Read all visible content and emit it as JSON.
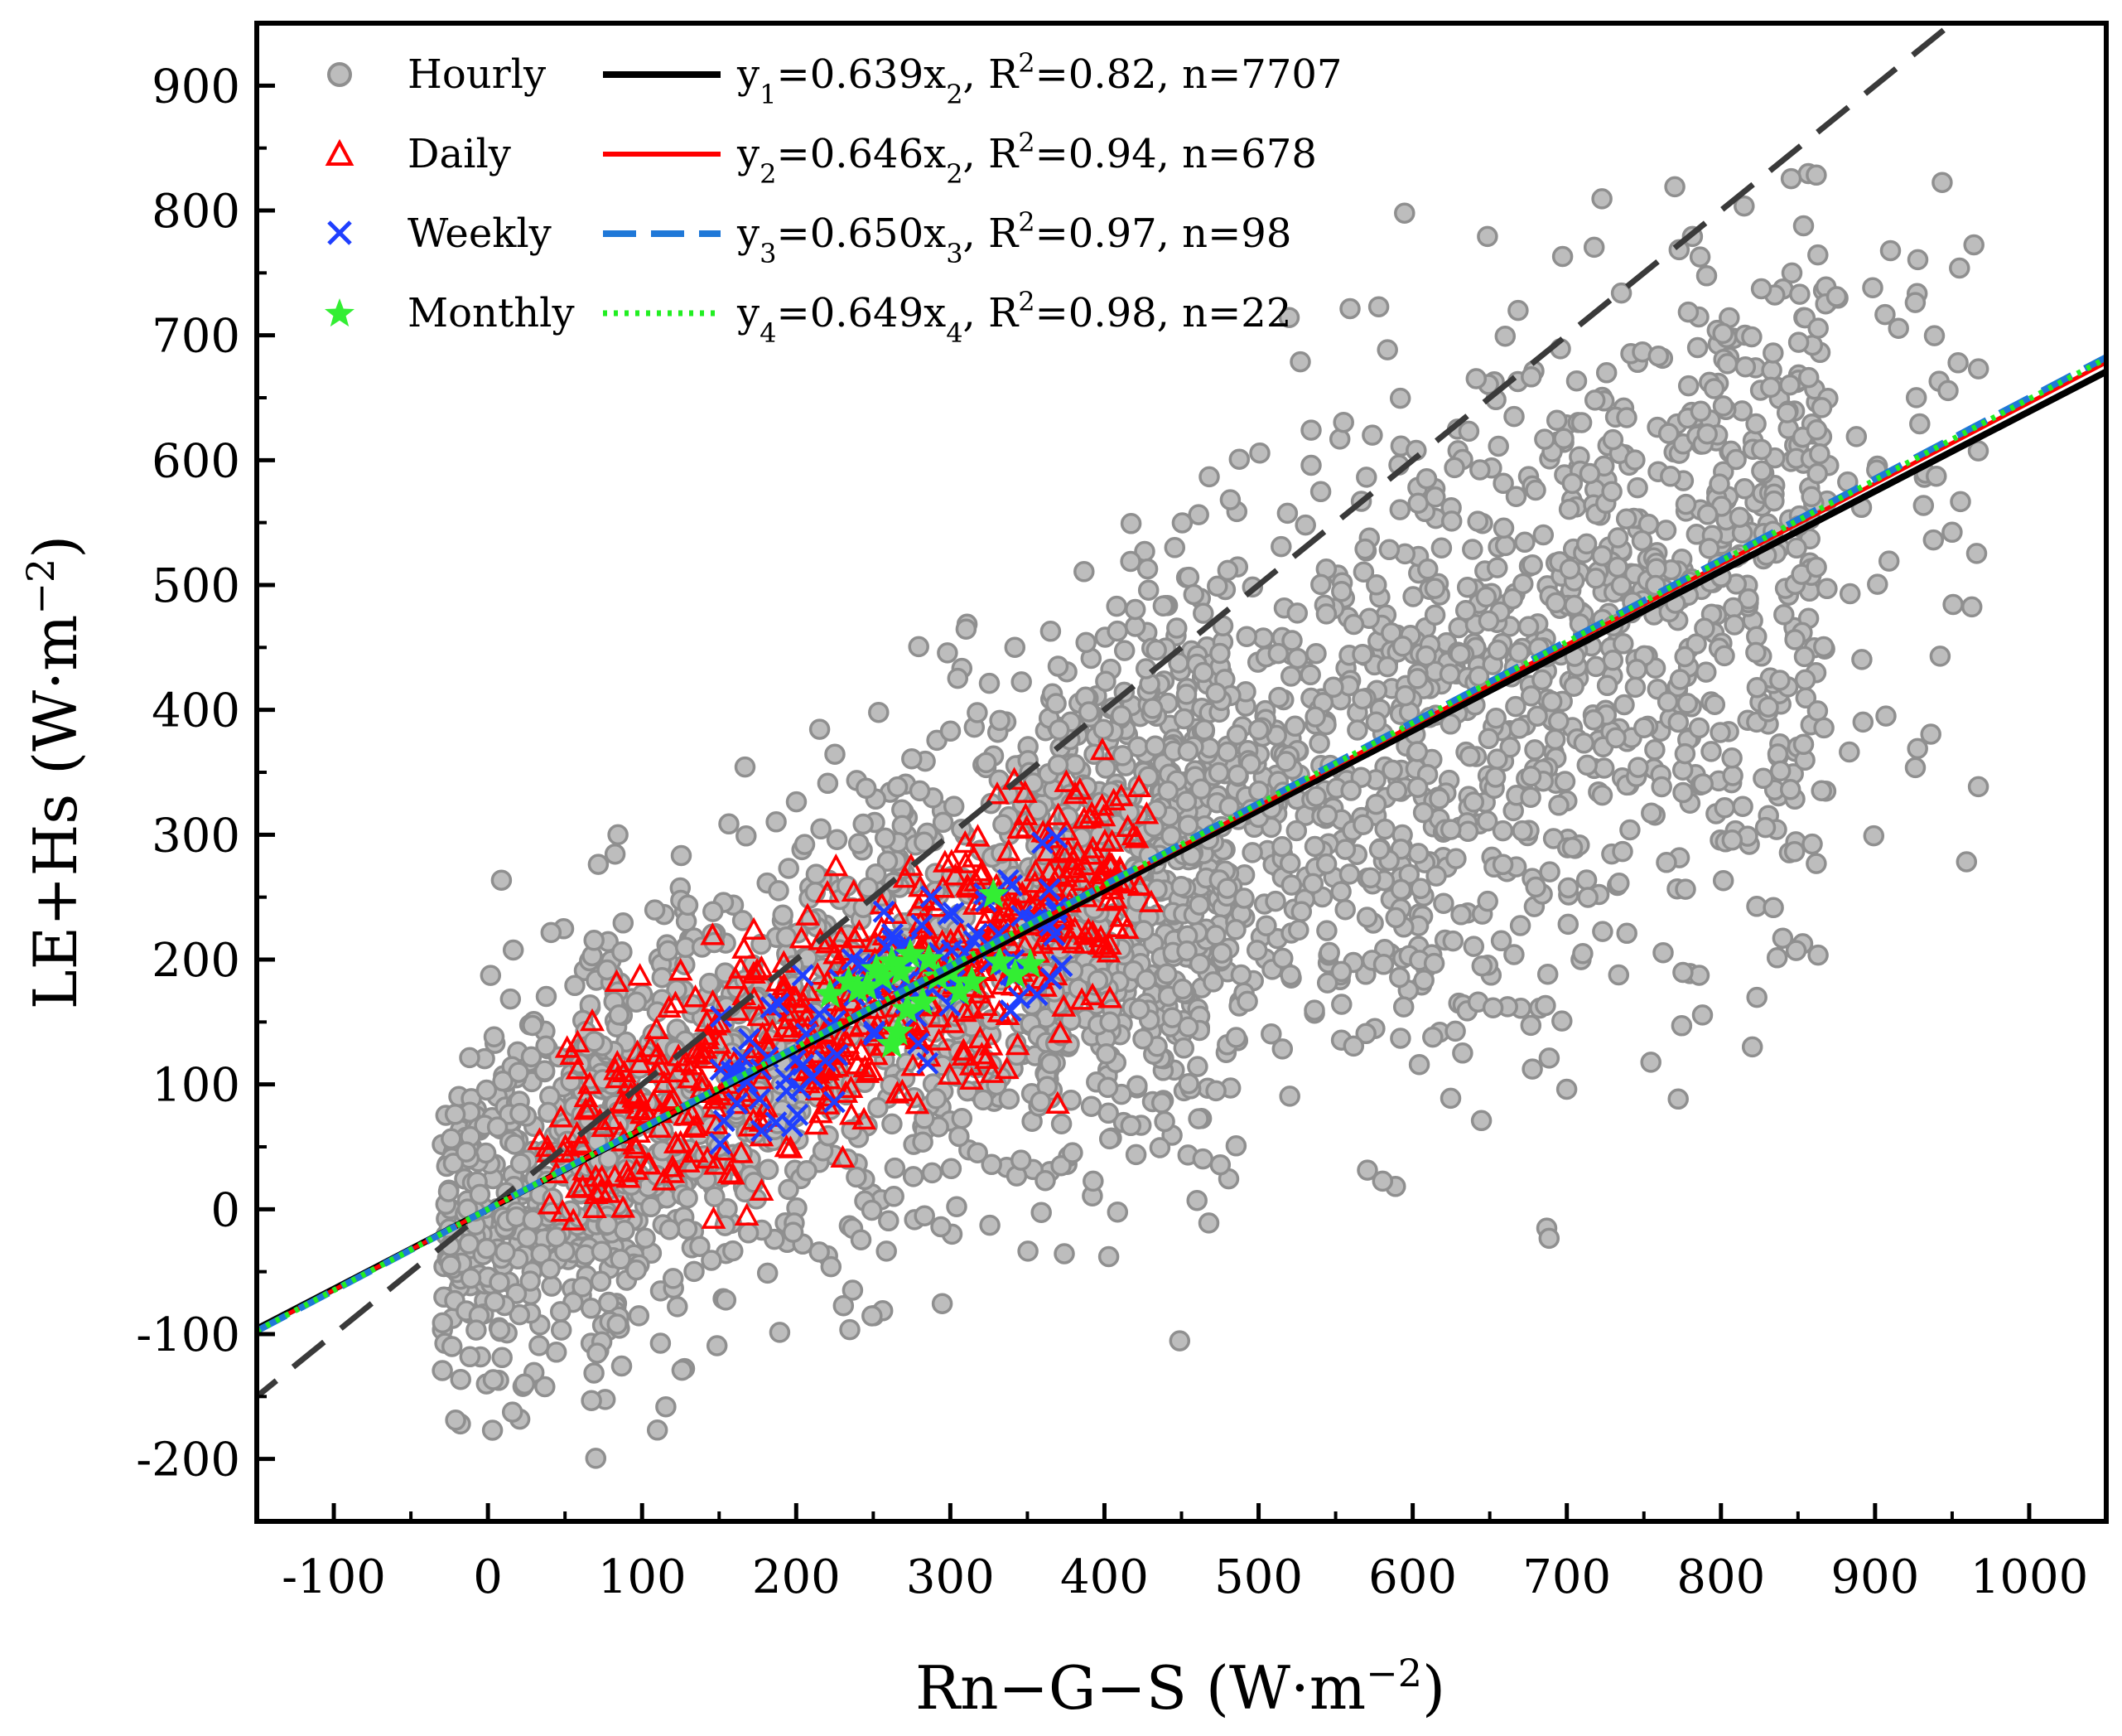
{
  "chart_data": {
    "type": "scatter",
    "xlabel": {
      "base": "Rn−G−S (W·m",
      "sup": "−2",
      "close": ")"
    },
    "ylabel": {
      "base": "LE+Hs (W·m",
      "sup": "−2",
      "close": ")"
    },
    "xlim": [
      -150,
      1050
    ],
    "ylim": [
      -250,
      950
    ],
    "x_ticks": [
      -100,
      0,
      100,
      200,
      300,
      400,
      500,
      600,
      700,
      800,
      900,
      1000
    ],
    "x_tick_labels": [
      "-100",
      "0",
      "100",
      "200",
      "300",
      "400",
      "500",
      "600",
      "700",
      "800",
      "900",
      "1000"
    ],
    "y_ticks": [
      -200,
      -100,
      0,
      100,
      200,
      300,
      400,
      500,
      600,
      700,
      800,
      900
    ],
    "y_tick_labels": [
      "-200",
      "-100",
      "0",
      "100",
      "200",
      "300",
      "400",
      "500",
      "600",
      "700",
      "800",
      "900"
    ],
    "grid": false,
    "legend_position": "top-left",
    "identity_line": {
      "slope": 1,
      "color": "#3a3a3a",
      "style": "dashed"
    },
    "series": [
      {
        "name": "Hourly",
        "marker": "circle",
        "color": "#bdbdbd",
        "edge": "#8f8f8f",
        "n": 7707,
        "fit": {
          "slope": 0.639,
          "label": {
            "y": "y",
            "sub": "1",
            "eq": "=0.639x",
            "xsub": "2",
            "r2pre": ", R",
            "r2sup": "2",
            "r2val": "=0.82, n=7707"
          },
          "color": "#000000",
          "style": "solid"
        }
      },
      {
        "name": "Daily",
        "marker": "triangle",
        "color": "#ff0000",
        "n": 678,
        "fit": {
          "slope": 0.646,
          "label": {
            "y": "y",
            "sub": "2",
            "eq": "=0.646x",
            "xsub": "2",
            "r2pre": ", R",
            "r2sup": "2",
            "r2val": "=0.94, n=678"
          },
          "color": "#ff0000",
          "style": "solid"
        }
      },
      {
        "name": "Weekly",
        "marker": "x",
        "color": "#1f3fff",
        "n": 98,
        "fit": {
          "slope": 0.65,
          "label": {
            "y": "y",
            "sub": "3",
            "eq": "=0.650x",
            "xsub": "3",
            "r2pre": ", R",
            "r2sup": "2",
            "r2val": "=0.97, n=98"
          },
          "color": "#1f78d8",
          "style": "dashed"
        }
      },
      {
        "name": "Monthly",
        "marker": "star",
        "color": "#33ee33",
        "n": 22,
        "fit": {
          "slope": 0.649,
          "label": {
            "y": "y",
            "sub": "4",
            "eq": "=0.649x",
            "xsub": "4",
            "r2pre": ", R",
            "r2sup": "2",
            "r2val": "=0.98, n=22"
          },
          "color": "#22ee22",
          "style": "dotted"
        }
      }
    ],
    "monthly_points": [
      [
        222,
        172
      ],
      [
        234,
        182
      ],
      [
        246,
        178
      ],
      [
        252,
        192
      ],
      [
        256,
        186
      ],
      [
        262,
        198
      ],
      [
        268,
        190
      ],
      [
        274,
        204
      ],
      [
        266,
        142
      ],
      [
        262,
        132
      ],
      [
        272,
        160
      ],
      [
        282,
        166
      ],
      [
        292,
        186
      ],
      [
        306,
        174
      ],
      [
        314,
        182
      ],
      [
        328,
        252
      ],
      [
        332,
        198
      ],
      [
        342,
        188
      ],
      [
        352,
        196
      ],
      [
        286,
        200
      ],
      [
        240,
        176
      ],
      [
        300,
        190
      ]
    ]
  }
}
